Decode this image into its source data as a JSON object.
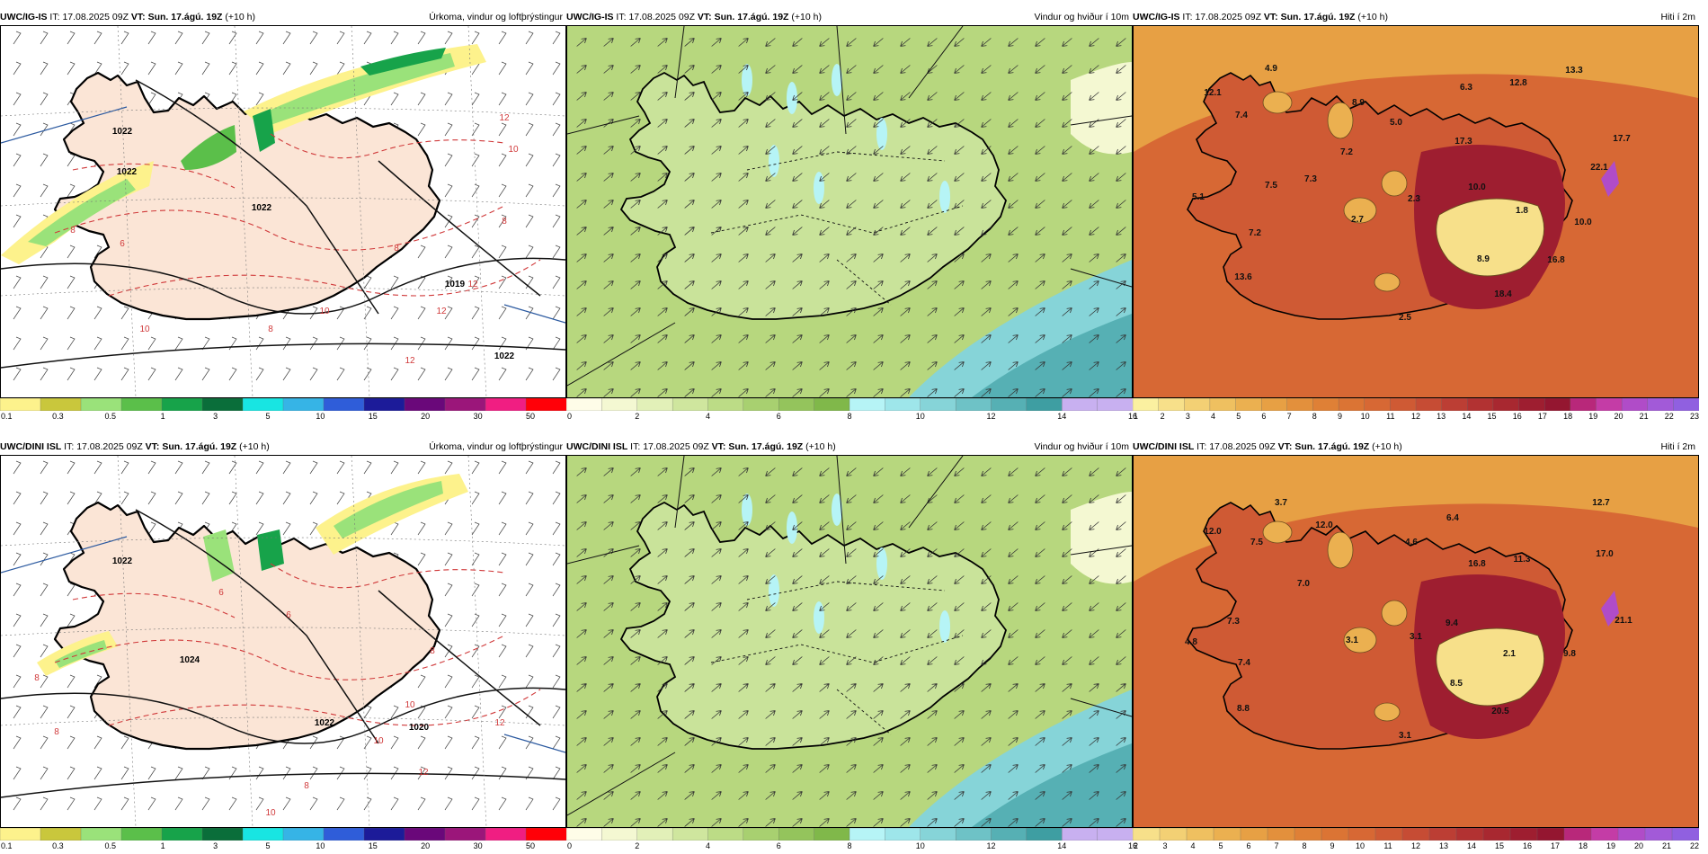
{
  "panels": [
    {
      "id": "p1",
      "model": "UWC/IG-IS",
      "it_label": "IT:",
      "it": "17.08.2025 09Z",
      "vt_label": "VT:",
      "vt": "Sun. 17.ágú. 19Z",
      "lead": "(+10 h)",
      "title": "Úrkoma, vindur og loftþrýstingur",
      "kind": "precip",
      "colorbar": {
        "colors": [
          "#fdf28c",
          "#c9c73c",
          "#9ae27a",
          "#5bbf4a",
          "#17a34a",
          "#0a6e3a",
          "#18e5e2",
          "#36b4e6",
          "#2f5dd9",
          "#1c1b99",
          "#6a087a",
          "#9b167a",
          "#f01e82",
          "#ff0008"
        ],
        "labels": [
          "0.1",
          "0.3",
          "0.5",
          "1",
          "3",
          "5",
          "10",
          "15",
          "20",
          "30",
          "50"
        ]
      },
      "labels": [
        "1022",
        "1022",
        "1019",
        "1022",
        "1022",
        "6",
        "8",
        "8",
        "8",
        "8",
        "10",
        "10",
        "10",
        "12",
        "12",
        "12",
        "12"
      ]
    },
    {
      "id": "p2",
      "model": "UWC/IG-IS",
      "it_label": "IT:",
      "it": "17.08.2025 09Z",
      "vt_label": "VT:",
      "vt": "Sun. 17.ágú. 19Z",
      "lead": "(+10 h)",
      "title": "Vindur og hviður í 10m",
      "kind": "wind",
      "colorbar": {
        "colors": [
          "#fefde8",
          "#f4f8d2",
          "#e2f0b8",
          "#cfe69e",
          "#bcdc86",
          "#a8d070",
          "#94c45c",
          "#80b84a",
          "#b6f4f6",
          "#9ee6ea",
          "#86d4d8",
          "#6ec2c6",
          "#56b0b4",
          "#3e9ea2",
          "#c8b0f0",
          "#c8b0f0"
        ],
        "labels": [
          "0",
          "2",
          "4",
          "6",
          "8",
          "10",
          "12",
          "14",
          "16"
        ]
      },
      "labels": []
    },
    {
      "id": "p3",
      "model": "UWC/IG-IS",
      "it_label": "IT:",
      "it": "17.08.2025 09Z",
      "vt_label": "VT:",
      "vt": "Sun. 17.ágú. 19Z",
      "lead": "(+10 h)",
      "title": "Hiti í 2m",
      "kind": "temp",
      "colorbar": {
        "colors": [
          "#fbf0a0",
          "#f7e08a",
          "#f3d074",
          "#efc060",
          "#ebb050",
          "#e7a044",
          "#e3903c",
          "#df8036",
          "#db7434",
          "#d76834",
          "#cf5a34",
          "#c64c34",
          "#bc3e34",
          "#b23232",
          "#a82830",
          "#9e1e30",
          "#941630",
          "#b8287a",
          "#c43ca6",
          "#b04cc8",
          "#a25ad8",
          "#9060e0"
        ],
        "labels": [
          "1",
          "2",
          "3",
          "4",
          "5",
          "6",
          "7",
          "8",
          "9",
          "10",
          "11",
          "12",
          "13",
          "14",
          "15",
          "16",
          "17",
          "18",
          "19",
          "20",
          "21",
          "22",
          "23"
        ]
      },
      "labels": [
        "4.9",
        "13.3",
        "12.1",
        "6.3",
        "12.8",
        "8.9",
        "7.4",
        "5.0",
        "17.3",
        "17.7",
        "7.2",
        "7.5",
        "7.3",
        "22.1",
        "5.1",
        "10.0",
        "2.3",
        "1.8",
        "2.7",
        "10.0",
        "7.2",
        "8.9",
        "16.8",
        "13.6",
        "18.4",
        "2.5"
      ]
    },
    {
      "id": "p4",
      "model": "UWC/DINI ISL",
      "it_label": "IT:",
      "it": "17.08.2025 09Z",
      "vt_label": "VT:",
      "vt": "Sun. 17.ágú. 19Z",
      "lead": "(+10 h)",
      "title": "Úrkoma, vindur og loftþrýstingur",
      "kind": "precip",
      "colorbar": {
        "colors": [
          "#fdf28c",
          "#c9c73c",
          "#9ae27a",
          "#5bbf4a",
          "#17a34a",
          "#0a6e3a",
          "#18e5e2",
          "#36b4e6",
          "#2f5dd9",
          "#1c1b99",
          "#6a087a",
          "#9b167a",
          "#f01e82",
          "#ff0008"
        ],
        "labels": [
          "0.1",
          "0.3",
          "0.5",
          "1",
          "3",
          "5",
          "10",
          "15",
          "20",
          "30",
          "50"
        ]
      },
      "labels": [
        "1022",
        "1022",
        "1024",
        "1020",
        "6",
        "6",
        "8",
        "8",
        "8",
        "8",
        "10",
        "10",
        "10",
        "12",
        "12"
      ]
    },
    {
      "id": "p5",
      "model": "UWC/DINI ISL",
      "it_label": "IT:",
      "it": "17.08.2025 09Z",
      "vt_label": "VT:",
      "vt": "Sun. 17.ágú. 19Z",
      "lead": "(+10 h)",
      "title": "Vindur og hviður í 10m",
      "kind": "wind",
      "colorbar": {
        "colors": [
          "#fefde8",
          "#f4f8d2",
          "#e2f0b8",
          "#cfe69e",
          "#bcdc86",
          "#a8d070",
          "#94c45c",
          "#80b84a",
          "#b6f4f6",
          "#9ee6ea",
          "#86d4d8",
          "#6ec2c6",
          "#56b0b4",
          "#3e9ea2",
          "#c8b0f0",
          "#c8b0f0"
        ],
        "labels": [
          "0",
          "2",
          "4",
          "6",
          "8",
          "10",
          "12",
          "14",
          "16"
        ]
      },
      "labels": []
    },
    {
      "id": "p6",
      "model": "UWC/DINI ISL",
      "it_label": "IT:",
      "it": "17.08.2025 09Z",
      "vt_label": "VT:",
      "vt": "Sun. 17.ágú. 19Z",
      "lead": "(+10 h)",
      "title": "Hiti í 2m",
      "kind": "temp",
      "colorbar": {
        "colors": [
          "#f7e08a",
          "#f3d074",
          "#efc060",
          "#ebb050",
          "#e7a044",
          "#e3903c",
          "#df8036",
          "#db7434",
          "#d76834",
          "#cf5a34",
          "#c64c34",
          "#bc3e34",
          "#b23232",
          "#a82830",
          "#9e1e30",
          "#941630",
          "#b8287a",
          "#c43ca6",
          "#b04cc8",
          "#a25ad8",
          "#9060e0"
        ],
        "labels": [
          "2",
          "3",
          "4",
          "5",
          "6",
          "7",
          "8",
          "9",
          "10",
          "11",
          "12",
          "13",
          "14",
          "15",
          "16",
          "17",
          "18",
          "19",
          "20",
          "21",
          "22"
        ]
      },
      "labels": [
        "3.7",
        "12.7",
        "12.0",
        "12.0",
        "6.4",
        "7.5",
        "4.6",
        "16.8",
        "11.3",
        "17.0",
        "7.0",
        "21.1",
        "7.3",
        "9.4",
        "4.8",
        "3.1",
        "3.1",
        "2.1",
        "9.8",
        "7.4",
        "8.5",
        "8.8",
        "20.5",
        "3.1"
      ]
    }
  ]
}
